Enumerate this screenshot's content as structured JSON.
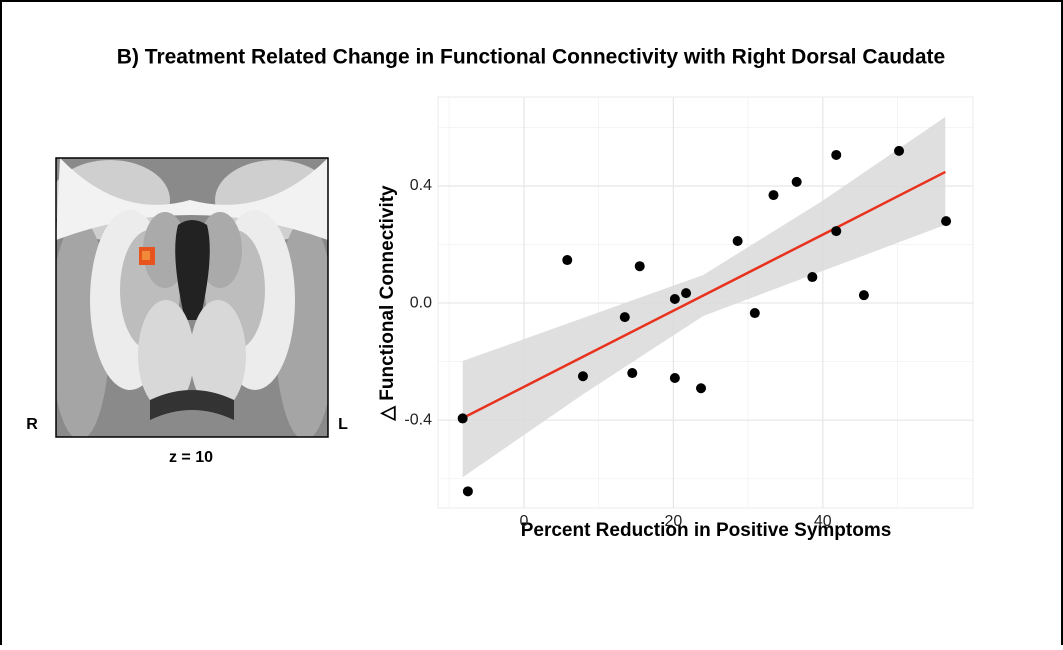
{
  "chart_data": {
    "type": "scatter",
    "title": "B) Treatment Related Change in Functional Connectivity with Right Dorsal Caudate",
    "image_labels": {
      "right": "R",
      "left": "L",
      "slice": "z = 10"
    },
    "x_label": "Percent Reduction in Positive Symptoms",
    "y_label": "△ Functional Connectivity",
    "xlim": [
      -11.5,
      60.1
    ],
    "ylim": [
      -0.7,
      0.704
    ],
    "xticks": [
      0,
      20,
      40
    ],
    "yticks": [
      {
        "value": 0.4,
        "label": "0.4"
      },
      {
        "value": 0.0,
        "label": "0.0"
      },
      {
        "value": -0.4,
        "label": "-0.4"
      }
    ],
    "x_minor_ticks": [
      -10,
      10,
      30,
      50
    ],
    "y_minor_ticks": [
      -0.6,
      -0.2,
      0.2,
      0.6
    ],
    "grid": true,
    "series": [
      {
        "color": "#000000",
        "x": [
          -8.2,
          -7.5,
          5.8,
          7.9,
          13.5,
          14.5,
          15.5,
          20.2,
          20.2,
          21.7,
          23.7,
          28.6,
          30.9,
          33.4,
          36.5,
          38.6,
          41.8,
          41.8,
          45.5,
          50.2,
          56.5
        ],
        "values": [
          -0.394,
          -0.643,
          0.147,
          -0.25,
          -0.048,
          -0.239,
          0.126,
          0.014,
          -0.256,
          0.034,
          -0.291,
          0.212,
          -0.034,
          0.369,
          0.414,
          0.089,
          0.506,
          0.246,
          0.027,
          0.52,
          0.28
        ]
      }
    ],
    "fit": {
      "color": "#e8321e",
      "band_color": "#d9d9d9",
      "x": [
        -8.2,
        8,
        24,
        40,
        56.4
      ],
      "values": [
        -0.393,
        -0.182,
        0.026,
        0.234,
        0.448
      ],
      "lower": [
        -0.595,
        -0.31,
        -0.044,
        0.11,
        0.267
      ],
      "upper": [
        -0.198,
        -0.05,
        0.096,
        0.35,
        0.636
      ]
    }
  }
}
